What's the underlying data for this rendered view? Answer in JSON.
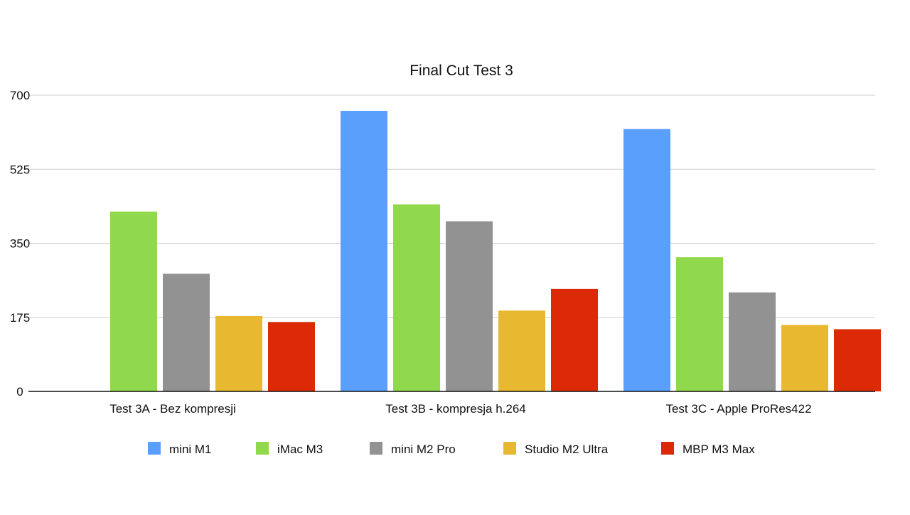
{
  "chart_data": {
    "type": "bar",
    "title": "Final Cut Test 3",
    "categories": [
      "Test 3A - Bez kompresji",
      "Test 3B - kompresja h.264",
      "Test 3C - Apple ProRes422"
    ],
    "series": [
      {
        "name": "mini M1",
        "color": "#5b9ffc",
        "values": [
          null,
          663,
          620
        ]
      },
      {
        "name": "iMac M3",
        "color": "#91d94c",
        "values": [
          425,
          442,
          317
        ]
      },
      {
        "name": "mini M2 Pro",
        "color": "#929292",
        "values": [
          278,
          402,
          234
        ]
      },
      {
        "name": "Studio M2 Ultra",
        "color": "#e7b830",
        "values": [
          178,
          191,
          157
        ]
      },
      {
        "name": "MBP M3 Max",
        "color": "#db2a05",
        "values": [
          164,
          242,
          147
        ]
      }
    ],
    "yticks": [
      0,
      175,
      350,
      525,
      700
    ],
    "ylim": [
      0,
      700
    ],
    "grid": true,
    "legend_position": "bottom"
  }
}
